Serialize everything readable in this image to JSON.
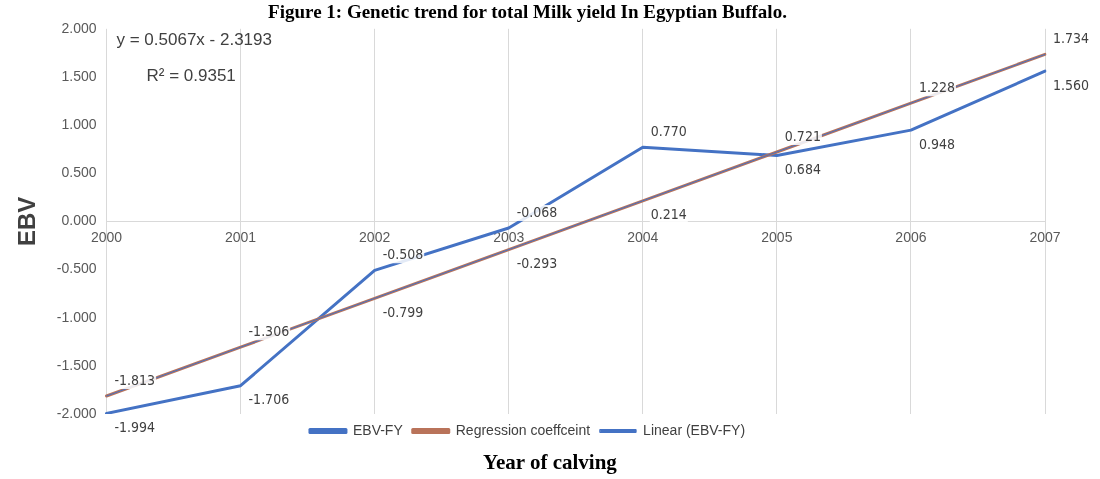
{
  "chart_data": {
    "type": "line",
    "title": "Figure 1: Genetic trend for total Milk yield In Egyptian Buffalo.",
    "xlabel": "Year of calving",
    "ylabel": "EBV",
    "categories": [
      "2000",
      "2001",
      "2002",
      "2003",
      "2004",
      "2005",
      "2006",
      "2007"
    ],
    "series": [
      {
        "name": "EBV-FY",
        "color": "#4472c4",
        "values": [
          -1.994,
          -1.706,
          -0.508,
          -0.068,
          0.77,
          0.684,
          0.948,
          1.56
        ],
        "value_labels": [
          "-1.994",
          "-1.706",
          "-0.508",
          "-0.068",
          "0.770",
          "0.684",
          "0.948",
          "1.560"
        ]
      },
      {
        "name": "Regression coeffceint",
        "color": "#b9735a",
        "values": [
          -1.813,
          -1.306,
          -0.799,
          -0.293,
          0.214,
          0.721,
          1.228,
          1.734
        ],
        "value_labels": [
          "-1.813",
          "-1.306",
          "-0.799",
          "-0.293",
          "0.214",
          "0.721",
          "1.228",
          "1.734"
        ]
      },
      {
        "name": "Linear (EBV-FY)",
        "color": "#4472c4",
        "values": [
          -1.813,
          -1.306,
          -0.799,
          -0.293,
          0.214,
          0.721,
          1.228,
          1.734
        ]
      }
    ],
    "ylim": [
      -2,
      2
    ],
    "yticks": [
      {
        "value": -2,
        "label": "-2.000"
      },
      {
        "value": -1.5,
        "label": "-1.500"
      },
      {
        "value": -1,
        "label": "-1.000"
      },
      {
        "value": -0.5,
        "label": "-0.500"
      },
      {
        "value": 0,
        "label": "0.000"
      },
      {
        "value": 0.5,
        "label": "0.500"
      },
      {
        "value": 1,
        "label": "1.000"
      },
      {
        "value": 1.5,
        "label": "1.500"
      },
      {
        "value": 2,
        "label": "2.000"
      }
    ],
    "grid": "x",
    "legend": "bottom",
    "marker": "none",
    "line_style": "solid",
    "annotations": [
      "y = 0.5067x - 2.3193",
      "R² = 0.9351"
    ]
  }
}
